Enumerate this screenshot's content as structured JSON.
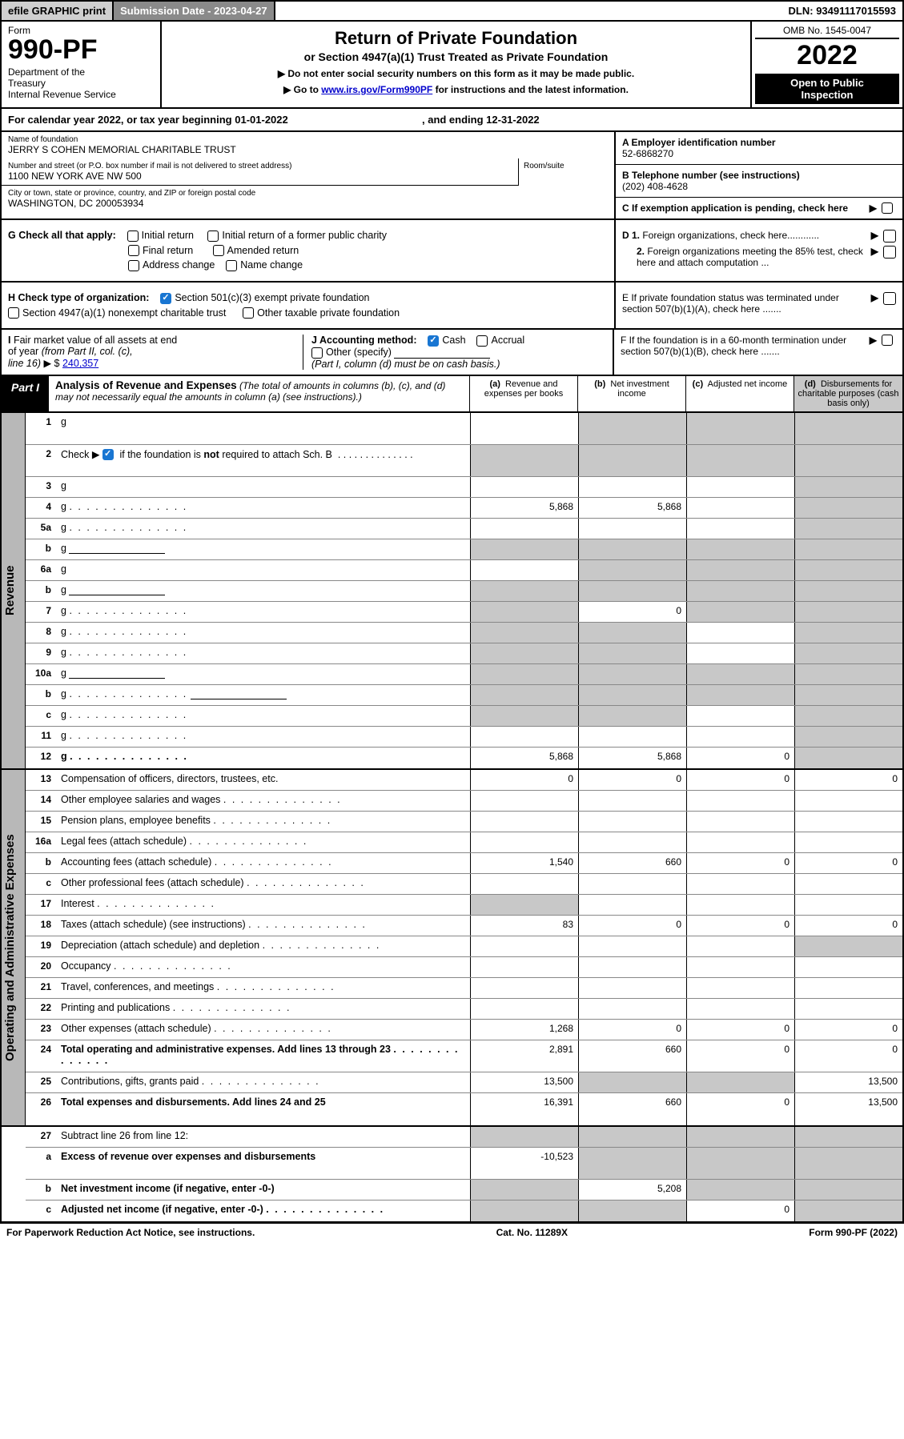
{
  "colors": {
    "black": "#000000",
    "white": "#ffffff",
    "grey_header": "#8a8a8a",
    "grey_cell": "#c8c8c8",
    "grey_btn": "#cfcfcf",
    "side_grey": "#b8b8b8",
    "link_blue": "#0000cc",
    "check_blue": "#1976d2"
  },
  "topbar": {
    "efile": "efile GRAPHIC print",
    "submission": "Submission Date - 2023-04-27",
    "dln": "DLN: 93491117015593"
  },
  "header": {
    "form_label": "Form",
    "form_number": "990-PF",
    "dept": "Department of the Treasury\nInternal Revenue Service",
    "title": "Return of Private Foundation",
    "subtitle": "or Section 4947(a)(1) Trust Treated as Private Foundation",
    "note1": "▶ Do not enter social security numbers on this form as it may be made public.",
    "note2_pre": "▶ Go to ",
    "note2_link": "www.irs.gov/Form990PF",
    "note2_post": " for instructions and the latest information.",
    "omb": "OMB No. 1545-0047",
    "year": "2022",
    "open": "Open to Public Inspection"
  },
  "calendar": {
    "text_pre": "For calendar year 2022, or tax year beginning ",
    "begin": "01-01-2022",
    "mid": ", and ending ",
    "end": "12-31-2022"
  },
  "info": {
    "name_label": "Name of foundation",
    "name": "JERRY S COHEN MEMORIAL CHARITABLE TRUST",
    "addr_label": "Number and street (or P.O. box number if mail is not delivered to street address)",
    "addr": "1100 NEW YORK AVE NW 500",
    "room_label": "Room/suite",
    "city_label": "City or town, state or province, country, and ZIP or foreign postal code",
    "city": "WASHINGTON, DC 200053934",
    "a_label": "A Employer identification number",
    "ein": "52-6868270",
    "b_label": "B Telephone number (see instructions)",
    "phone": "(202) 408-4628",
    "c_label": "C If exemption application is pending, check here"
  },
  "checks": {
    "g_label": "G Check all that apply:",
    "g_opts": [
      "Initial return",
      "Initial return of a former public charity",
      "Final return",
      "Amended return",
      "Address change",
      "Name change"
    ],
    "h_label": "H Check type of organization:",
    "h_opt1": "Section 501(c)(3) exempt private foundation",
    "h_opt2": "Section 4947(a)(1) nonexempt charitable trust",
    "h_opt3": "Other taxable private foundation",
    "i_label": "I Fair market value of all assets at end of year (from Part II, col. (c), line 16) ▶ $",
    "i_value": "240,357",
    "j_label": "J Accounting method:",
    "j_cash": "Cash",
    "j_accrual": "Accrual",
    "j_other": "Other (specify)",
    "j_note": "(Part I, column (d) must be on cash basis.)",
    "d1": "D 1. Foreign organizations, check here............",
    "d2": "2. Foreign organizations meeting the 85% test, check here and attach computation ...",
    "e": "E  If private foundation status was terminated under section 507(b)(1)(A), check here .......",
    "f": "F  If the foundation is in a 60-month termination under section 507(b)(1)(B), check here ......."
  },
  "part1": {
    "label": "Part I",
    "title": "Analysis of Revenue and Expenses",
    "title_note": "(The total of amounts in columns (b), (c), and (d) may not necessarily equal the amounts in column (a) (see instructions).)",
    "col_a": "(a)  Revenue and expenses per books",
    "col_b": "(b)  Net investment income",
    "col_c": "(c)  Adjusted net income",
    "col_d": "(d)  Disbursements for charitable purposes (cash basis only)"
  },
  "side_labels": {
    "revenue": "Revenue",
    "expenses": "Operating and Administrative Expenses"
  },
  "lines": [
    {
      "n": "1",
      "d": "g",
      "a": "",
      "b": "g",
      "c": "g",
      "tall": true
    },
    {
      "n": "2",
      "d": "g",
      "a": "g",
      "b": "g",
      "c": "g",
      "tall": true,
      "desc_html": true
    },
    {
      "n": "3",
      "d": "g",
      "a": "",
      "b": "",
      "c": ""
    },
    {
      "n": "4",
      "d": "g",
      "a": "5,868",
      "b": "5,868",
      "c": "",
      "dots": true
    },
    {
      "n": "5a",
      "d": "g",
      "a": "",
      "b": "",
      "c": "",
      "dots": true
    },
    {
      "n": "b",
      "d": "g",
      "a": "g",
      "b": "g",
      "c": "g",
      "inline_blank": true
    },
    {
      "n": "6a",
      "d": "g",
      "a": "",
      "b": "g",
      "c": "g"
    },
    {
      "n": "b",
      "d": "g",
      "a": "g",
      "b": "g",
      "c": "g",
      "inline_blank": true
    },
    {
      "n": "7",
      "d": "g",
      "a": "g",
      "b": "0",
      "c": "g",
      "dots": true
    },
    {
      "n": "8",
      "d": "g",
      "a": "g",
      "b": "g",
      "c": "",
      "dots": true
    },
    {
      "n": "9",
      "d": "g",
      "a": "g",
      "b": "g",
      "c": "",
      "dots": true
    },
    {
      "n": "10a",
      "d": "g",
      "a": "g",
      "b": "g",
      "c": "g",
      "inline_blank": true
    },
    {
      "n": "b",
      "d": "g",
      "a": "g",
      "b": "g",
      "c": "g",
      "dots": true,
      "inline_blank": true
    },
    {
      "n": "c",
      "d": "g",
      "a": "g",
      "b": "g",
      "c": "",
      "dots": true
    },
    {
      "n": "11",
      "d": "g",
      "a": "",
      "b": "",
      "c": "",
      "dots": true
    },
    {
      "n": "12",
      "d": "g",
      "a": "5,868",
      "b": "5,868",
      "c": "0",
      "bold": true,
      "dots": true
    }
  ],
  "exp_lines": [
    {
      "n": "13",
      "d": "Compensation of officers, directors, trustees, etc.",
      "a": "0",
      "b": "0",
      "c": "0",
      "dd": "0"
    },
    {
      "n": "14",
      "d": "Other employee salaries and wages",
      "a": "",
      "b": "",
      "c": "",
      "dd": "",
      "dots": true
    },
    {
      "n": "15",
      "d": "Pension plans, employee benefits",
      "a": "",
      "b": "",
      "c": "",
      "dd": "",
      "dots": true
    },
    {
      "n": "16a",
      "d": "Legal fees (attach schedule)",
      "a": "",
      "b": "",
      "c": "",
      "dd": "",
      "dots": true
    },
    {
      "n": "b",
      "d": "Accounting fees (attach schedule)",
      "a": "1,540",
      "b": "660",
      "c": "0",
      "dd": "0",
      "dots": true
    },
    {
      "n": "c",
      "d": "Other professional fees (attach schedule)",
      "a": "",
      "b": "",
      "c": "",
      "dd": "",
      "dots": true
    },
    {
      "n": "17",
      "d": "Interest",
      "a": "g",
      "b": "",
      "c": "",
      "dd": "",
      "dots": true
    },
    {
      "n": "18",
      "d": "Taxes (attach schedule) (see instructions)",
      "a": "83",
      "b": "0",
      "c": "0",
      "dd": "0",
      "dots": true
    },
    {
      "n": "19",
      "d": "Depreciation (attach schedule) and depletion",
      "a": "",
      "b": "",
      "c": "",
      "dd": "g",
      "dots": true
    },
    {
      "n": "20",
      "d": "Occupancy",
      "a": "",
      "b": "",
      "c": "",
      "dd": "",
      "dots": true
    },
    {
      "n": "21",
      "d": "Travel, conferences, and meetings",
      "a": "",
      "b": "",
      "c": "",
      "dd": "",
      "dots": true
    },
    {
      "n": "22",
      "d": "Printing and publications",
      "a": "",
      "b": "",
      "c": "",
      "dd": "",
      "dots": true
    },
    {
      "n": "23",
      "d": "Other expenses (attach schedule)",
      "a": "1,268",
      "b": "0",
      "c": "0",
      "dd": "0",
      "dots": true
    },
    {
      "n": "24",
      "d": "Total operating and administrative expenses. Add lines 13 through 23",
      "a": "2,891",
      "b": "660",
      "c": "0",
      "dd": "0",
      "bold": true,
      "dots": true,
      "tall": true
    },
    {
      "n": "25",
      "d": "Contributions, gifts, grants paid",
      "a": "13,500",
      "b": "g",
      "c": "g",
      "dd": "13,500",
      "dots": true
    },
    {
      "n": "26",
      "d": "Total expenses and disbursements. Add lines 24 and 25",
      "a": "16,391",
      "b": "660",
      "c": "0",
      "dd": "13,500",
      "bold": true,
      "tall": true
    }
  ],
  "bottom_lines": [
    {
      "n": "27",
      "d": "Subtract line 26 from line 12:",
      "a": "g",
      "b": "g",
      "c": "g",
      "dd": "g"
    },
    {
      "n": "a",
      "d": "Excess of revenue over expenses and disbursements",
      "a": "-10,523",
      "b": "g",
      "c": "g",
      "dd": "g",
      "bold": true,
      "tall": true
    },
    {
      "n": "b",
      "d": "Net investment income (if negative, enter -0-)",
      "a": "g",
      "b": "5,208",
      "c": "g",
      "dd": "g",
      "bold": true
    },
    {
      "n": "c",
      "d": "Adjusted net income (if negative, enter -0-)",
      "a": "g",
      "b": "g",
      "c": "0",
      "dd": "g",
      "bold": true,
      "dots": true
    }
  ],
  "footer": {
    "left": "For Paperwork Reduction Act Notice, see instructions.",
    "mid": "Cat. No. 11289X",
    "right": "Form 990-PF (2022)"
  }
}
